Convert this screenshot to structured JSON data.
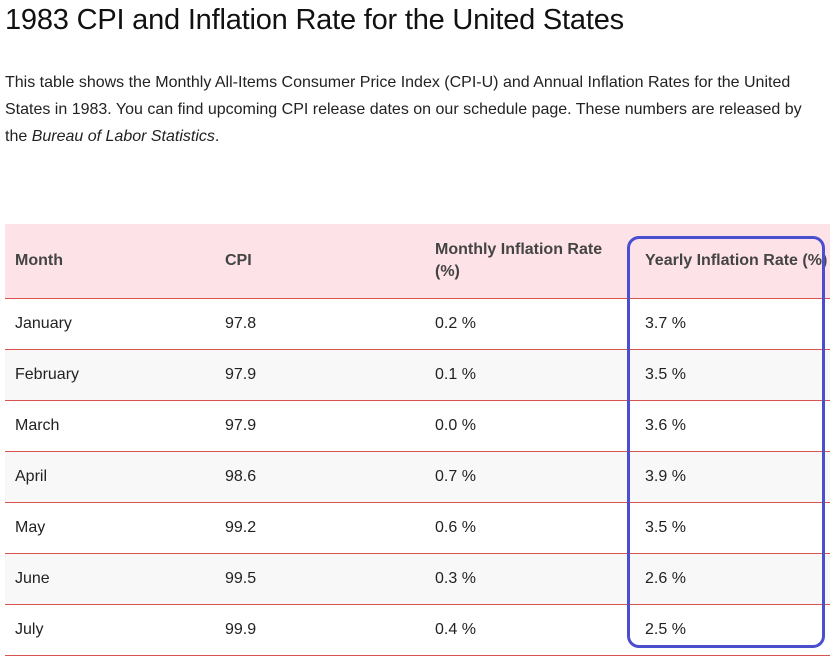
{
  "page": {
    "title": "1983 CPI and Inflation Rate for the United States",
    "intro": {
      "text_before": "This table shows the Monthly All-Items Consumer Price Index (CPI-U) and Annual Inflation Rates for the United States in 1983. You can find upcoming CPI release dates on our schedule page. These numbers are released by the ",
      "source_name": "Bureau of Labor Statistics",
      "text_after": "."
    }
  },
  "table": {
    "headers": {
      "month": "Month",
      "cpi": "CPI",
      "monthly": "Monthly Inflation Rate (%)",
      "yearly": "Yearly Inflation Rate (%)"
    },
    "rows": [
      {
        "month": "January",
        "cpi": "97.8",
        "monthly": "0.2 %",
        "yearly": "3.7 %"
      },
      {
        "month": "February",
        "cpi": "97.9",
        "monthly": "0.1 %",
        "yearly": "3.5 %"
      },
      {
        "month": "March",
        "cpi": "97.9",
        "monthly": "0.0 %",
        "yearly": "3.6 %"
      },
      {
        "month": "April",
        "cpi": "98.6",
        "monthly": "0.7 %",
        "yearly": "3.9 %"
      },
      {
        "month": "May",
        "cpi": "99.2",
        "monthly": "0.6 %",
        "yearly": "3.5 %"
      },
      {
        "month": "June",
        "cpi": "99.5",
        "monthly": "0.3 %",
        "yearly": "2.6 %"
      },
      {
        "month": "July",
        "cpi": "99.9",
        "monthly": "0.4 %",
        "yearly": "2.5 %"
      }
    ]
  },
  "colors": {
    "header_bg": "#fde3e8",
    "row_divider": "#d9534f",
    "highlight_outline": "#4a4fd0"
  }
}
